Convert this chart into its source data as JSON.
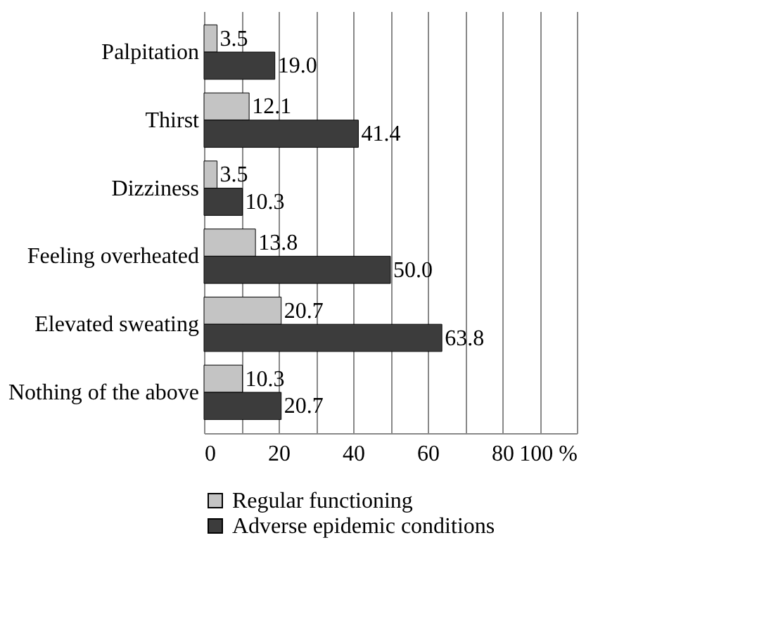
{
  "chart_data": {
    "type": "bar",
    "orientation": "horizontal",
    "categories": [
      "Palpitation",
      "Thirst",
      "Dizziness",
      "Feeling overheated",
      "Elevated sweating",
      "Nothing of the above"
    ],
    "series": [
      {
        "name": "Regular functioning",
        "color": "#c4c4c4",
        "values": [
          3.5,
          12.1,
          3.5,
          13.8,
          20.7,
          10.3
        ],
        "value_labels": [
          "3.5",
          "12.1",
          "3.5",
          "13.8",
          "20.7",
          "10.3"
        ]
      },
      {
        "name": "Adverse epidemic conditions",
        "color": "#3c3c3c",
        "values": [
          19.0,
          41.4,
          10.3,
          50.0,
          63.8,
          20.7
        ],
        "value_labels": [
          "19.0",
          "41.4",
          "10.3",
          "50.0",
          "63.8",
          "20.7"
        ]
      }
    ],
    "xlim": [
      0,
      100
    ],
    "xticks": [
      0,
      {
        "value": 10,
        "label": null
      },
      20,
      {
        "value": 30,
        "label": null
      },
      40,
      {
        "value": 50,
        "label": null
      },
      60,
      {
        "value": 70,
        "label": null
      },
      80,
      {
        "value": 90,
        "label": null
      },
      {
        "value": 100,
        "label": "100 %"
      }
    ],
    "grid": "x",
    "legend": "bottom"
  }
}
